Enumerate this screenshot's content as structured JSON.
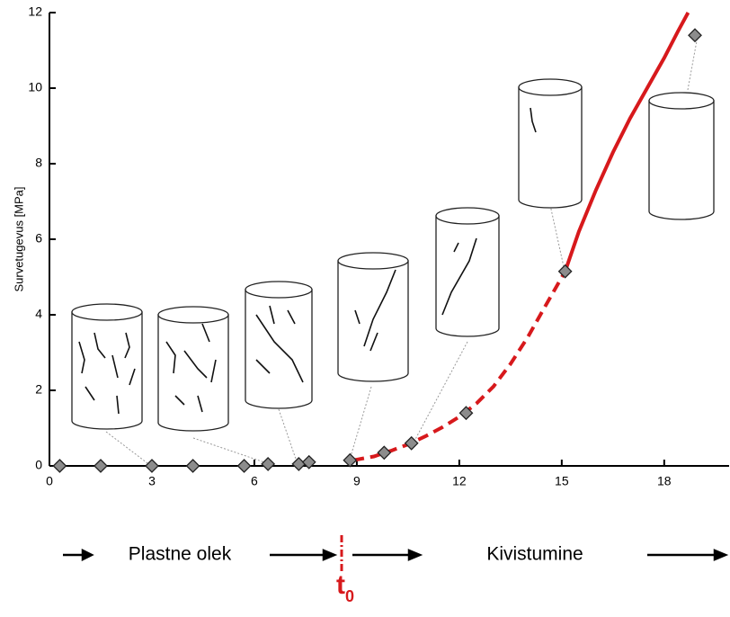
{
  "chart_data": {
    "type": "scatter",
    "ylabel": "Survetugevus [MPa]",
    "xlim": [
      0,
      19.9
    ],
    "ylim": [
      0,
      12
    ],
    "xticks": [
      0,
      3,
      6,
      9,
      12,
      15,
      18
    ],
    "yticks": [
      0,
      2,
      4,
      6,
      8,
      10,
      12
    ],
    "points": {
      "color": "#8c8c8c",
      "x": [
        0.3,
        1.5,
        3,
        4.2,
        5.7,
        6.4,
        7.3,
        7.6,
        8.8,
        9.8,
        10.6,
        12.2,
        15.1,
        18.9
      ],
      "y": [
        0,
        0,
        0,
        0,
        0,
        0.05,
        0.05,
        0.1,
        0.15,
        0.35,
        0.6,
        1.4,
        5.15,
        11.4
      ]
    },
    "curves": [
      {
        "color": "#d7191c",
        "dashed": true,
        "x": [
          8.9,
          9.5,
          10,
          10.5,
          11,
          11.5,
          12,
          12.5,
          13,
          13.5,
          14,
          14.5,
          15.1
        ],
        "y": [
          0.15,
          0.25,
          0.4,
          0.57,
          0.78,
          1.02,
          1.3,
          1.65,
          2.1,
          2.7,
          3.4,
          4.2,
          5.15
        ]
      },
      {
        "color": "#d7191c",
        "dashed": false,
        "x": [
          15.1,
          15.5,
          16,
          16.5,
          17,
          17.5,
          18,
          18.4,
          18.7
        ],
        "y": [
          5.15,
          6.2,
          7.3,
          8.3,
          9.2,
          10.0,
          10.8,
          11.5,
          12
        ]
      }
    ],
    "annotations": {
      "left_phase": "Plastne olek",
      "right_phase": "Kivistumine",
      "t_main": "t",
      "t_sub": "0"
    }
  }
}
